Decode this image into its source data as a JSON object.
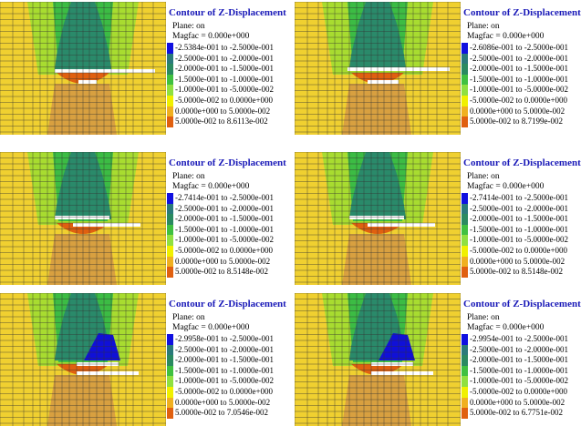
{
  "common": {
    "title": "Contour of Z-Displacement",
    "plane_text": "Plane: on",
    "magfac_text": "Magfac = 0.000e+000",
    "legend_colors": [
      "#1010e0",
      "#2a7a7a",
      "#2a8a60",
      "#40c040",
      "#90e040",
      "#f0f000",
      "#f0b020",
      "#e06010"
    ]
  },
  "panels": [
    {
      "ranges": [
        "-2.5384e-001 to -2.5000e-001",
        "-2.5000e-001 to -2.0000e-001",
        "-2.0000e-001 to -1.5000e-001",
        "-1.5000e-001 to -1.0000e-001",
        "-1.0000e-001 to -5.0000e-002",
        "-5.0000e-002 to 0.0000e+000",
        "0.0000e+000 to 5.0000e-002",
        "5.0000e-002 to 8.6113e-002"
      ]
    },
    {
      "ranges": [
        "-2.6086e-001 to -2.5000e-001",
        "-2.5000e-001 to -2.0000e-001",
        "-2.0000e-001 to -1.5000e-001",
        "-1.5000e-001 to -1.0000e-001",
        "-1.0000e-001 to -5.0000e-002",
        "-5.0000e-002 to 0.0000e+000",
        "0.0000e+000 to 5.0000e-002",
        "5.0000e-002 to 8.7199e-002"
      ]
    },
    {
      "ranges": [
        "-2.7414e-001 to -2.5000e-001",
        "-2.5000e-001 to -2.0000e-001",
        "-2.0000e-001 to -1.5000e-001",
        "-1.5000e-001 to -1.0000e-001",
        "-1.0000e-001 to -5.0000e-002",
        "-5.0000e-002 to 0.0000e+000",
        "0.0000e+000 to 5.0000e-002",
        "5.0000e-002 to 8.5148e-002"
      ]
    },
    {
      "ranges": [
        "-2.7414e-001 to -2.5000e-001",
        "-2.5000e-001 to -2.0000e-001",
        "-2.0000e-001 to -1.5000e-001",
        "-1.5000e-001 to -1.0000e-001",
        "-1.0000e-001 to -5.0000e-002",
        "-5.0000e-002 to 0.0000e+000",
        "0.0000e+000 to 5.0000e-002",
        "5.0000e-002 to 8.5148e-002"
      ]
    },
    {
      "ranges": [
        "-2.9958e-001 to -2.5000e-001",
        "-2.5000e-001 to -2.0000e-001",
        "-2.0000e-001 to -1.5000e-001",
        "-1.5000e-001 to -1.0000e-001",
        "-1.0000e-001 to -5.0000e-002",
        "-5.0000e-002 to 0.0000e+000",
        "0.0000e+000 to 5.0000e-002",
        "5.0000e-002 to 7.0546e-002"
      ]
    },
    {
      "ranges": [
        "-2.9954e-001 to -2.5000e-001",
        "-2.5000e-001 to -2.0000e-001",
        "-2.0000e-001 to -1.5000e-001",
        "-1.5000e-001 to -1.0000e-001",
        "-1.0000e-001 to -5.0000e-002",
        "-5.0000e-002 to 0.0000e+000",
        "0.0000e+000 to 5.0000e-002",
        "5.0000e-002 to 6.7751e-002"
      ]
    }
  ]
}
